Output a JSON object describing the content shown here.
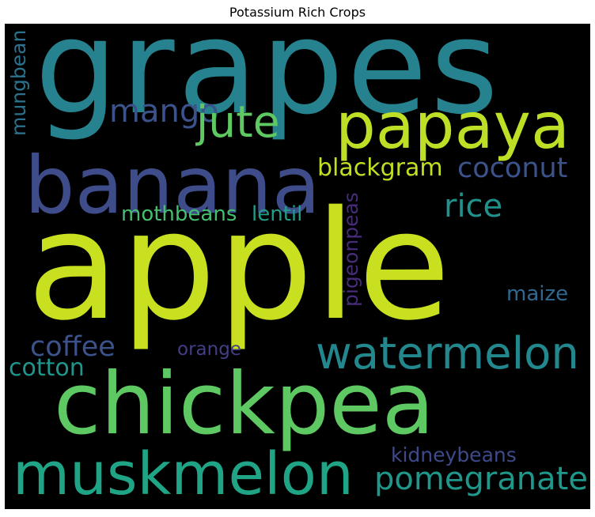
{
  "title": "Potassium Rich Crops",
  "canvas": {
    "background": "#000000"
  },
  "words": {
    "grapes": {
      "text": "grapes",
      "color": "#26828e"
    },
    "papaya": {
      "text": "papaya",
      "color": "#bddf26"
    },
    "banana": {
      "text": "banana",
      "color": "#3e4c8a"
    },
    "mango": {
      "text": "mango",
      "color": "#3b528b"
    },
    "jute": {
      "text": "jute",
      "color": "#5ec962"
    },
    "mungbean": {
      "text": "mungbean",
      "color": "#2c728e"
    },
    "blackgram": {
      "text": "blackgram",
      "color": "#c2df23"
    },
    "coconut": {
      "text": "coconut",
      "color": "#3b528b"
    },
    "rice": {
      "text": "rice",
      "color": "#21918c"
    },
    "mothbeans": {
      "text": "mothbeans",
      "color": "#44bf70"
    },
    "lentil": {
      "text": "lentil",
      "color": "#1f9e89"
    },
    "pigeonpeas": {
      "text": "pigeonpeas",
      "color": "#472c7a"
    },
    "apple": {
      "text": "apple",
      "color": "#c8e020"
    },
    "maize": {
      "text": "maize",
      "color": "#31688e"
    },
    "coffee": {
      "text": "coffee",
      "color": "#3b528b"
    },
    "orange": {
      "text": "orange",
      "color": "#433e85"
    },
    "watermelon": {
      "text": "watermelon",
      "color": "#23888e"
    },
    "cotton": {
      "text": "cotton",
      "color": "#1f968b"
    },
    "chickpea": {
      "text": "chickpea",
      "color": "#5ec962"
    },
    "kidneybeans": {
      "text": "kidneybeans",
      "color": "#3e4a89"
    },
    "muskmelon": {
      "text": "muskmelon",
      "color": "#20a486"
    },
    "pomegranate": {
      "text": "pomegranate",
      "color": "#1f978b"
    }
  }
}
